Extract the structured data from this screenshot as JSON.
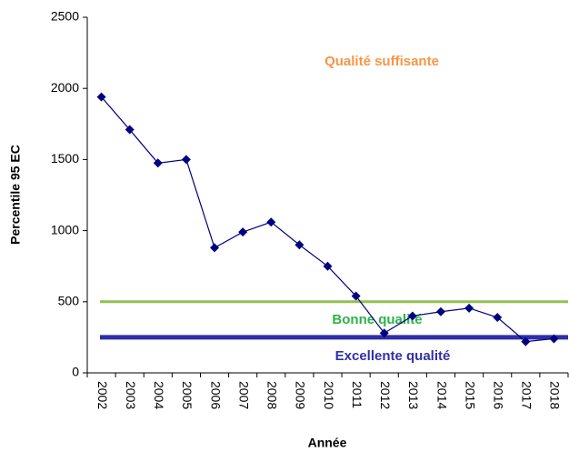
{
  "chart_data": {
    "type": "line",
    "x_label": "Année",
    "y_label": "Percentile 95 EC",
    "categories": [
      "2002",
      "2003",
      "2004",
      "2005",
      "2006",
      "2007",
      "2008",
      "2009",
      "2010",
      "2011",
      "2012",
      "2013",
      "2014",
      "2015",
      "2016",
      "2017",
      "2018"
    ],
    "series": [
      {
        "color": "#000080",
        "values": [
          1940,
          1710,
          1475,
          1500,
          880,
          990,
          1060,
          900,
          750,
          540,
          280,
          400,
          430,
          455,
          390,
          220,
          240
        ]
      }
    ],
    "thresholds": [
      {
        "value": 500,
        "color": "#92c050"
      },
      {
        "value": 250,
        "color": "#2e2ea8"
      }
    ],
    "annotations": [
      {
        "text": "Qualité suffisante",
        "color": "#f79646"
      },
      {
        "text": "Bonne qualité",
        "color": "#2eb24a"
      },
      {
        "text": "Excellente qualité",
        "color": "#3030a8"
      }
    ],
    "ylim": [
      0,
      2500
    ],
    "yticks": [
      0,
      500,
      1000,
      1500,
      2000,
      2500
    ]
  }
}
